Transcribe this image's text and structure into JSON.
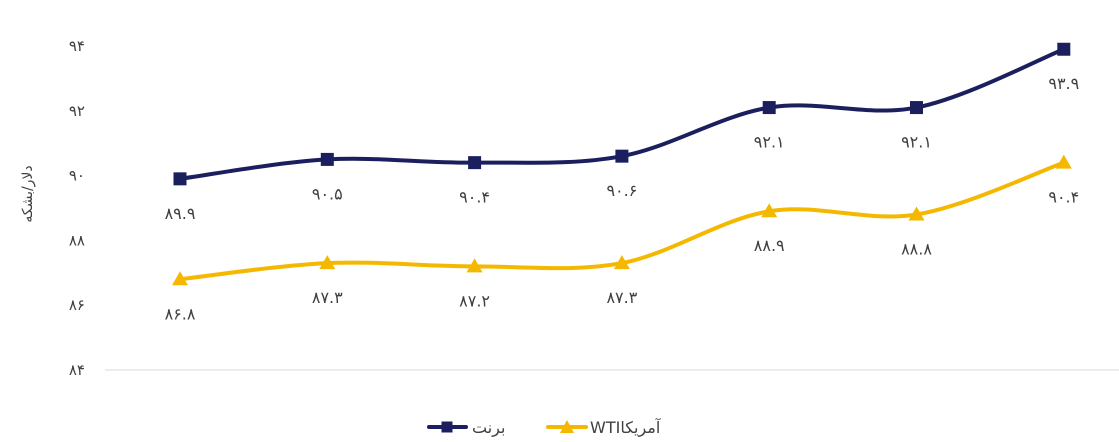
{
  "chart_data": {
    "type": "line",
    "ylabel": "دلار/بشکه",
    "ylim": [
      84,
      94
    ],
    "yticks": [
      "۸۴",
      "۸۶",
      "۸۸",
      "۹۰",
      "۹۲",
      "۹۴"
    ],
    "ytick_values": [
      84,
      86,
      88,
      90,
      92,
      94
    ],
    "grid": false,
    "legend_position": "bottom",
    "x": [
      1,
      2,
      3,
      4,
      5,
      6,
      7
    ],
    "series": [
      {
        "name": "برنت",
        "color": "#1b1f5e",
        "marker": "square",
        "values": [
          89.9,
          90.5,
          90.4,
          90.6,
          92.1,
          92.1,
          93.9
        ],
        "labels": [
          "۸۹.۹",
          "۹۰.۵",
          "۹۰.۴",
          "۹۰.۶",
          "۹۲.۱",
          "۹۲.۱",
          "۹۳.۹"
        ]
      },
      {
        "name": "WTIآمریکا",
        "color": "#f5b800",
        "marker": "triangle",
        "values": [
          86.8,
          87.3,
          87.2,
          87.3,
          88.9,
          88.8,
          90.4
        ],
        "labels": [
          "۸۶.۸",
          "۸۷.۳",
          "۸۷.۲",
          "۸۷.۳",
          "۸۸.۹",
          "۸۸.۸",
          "۹۰.۴"
        ]
      }
    ]
  }
}
